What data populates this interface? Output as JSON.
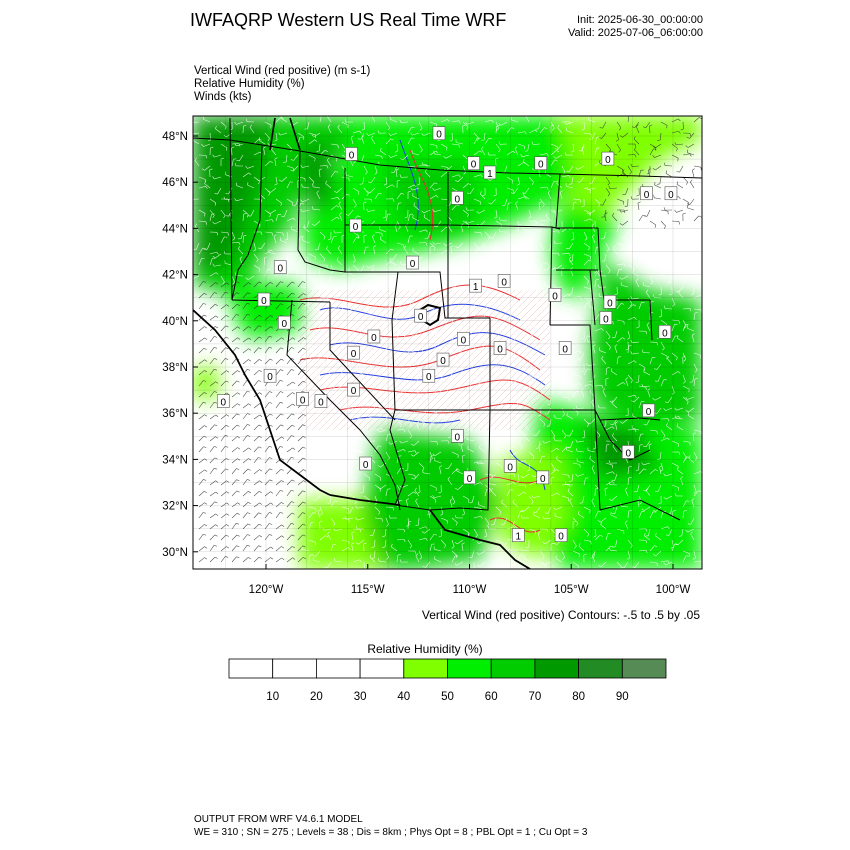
{
  "header": {
    "title": "IWFAQRP Western US Real Time WRF",
    "init": "Init: 2025-06-30_00:00:00",
    "valid": "Valid: 2025-07-06_06:00:00"
  },
  "fields": [
    "Vertical Wind (red positive)   (m s-1)",
    "Relative Humidity   (%)",
    "Winds   (kts)"
  ],
  "map": {
    "lat_labels": [
      "48°N",
      "46°N",
      "44°N",
      "42°N",
      "40°N",
      "38°N",
      "36°N",
      "34°N",
      "32°N",
      "30°N"
    ],
    "lon_labels": [
      "120°W",
      "115°W",
      "110°W",
      "105°W",
      "100°W"
    ],
    "lat_values": [
      48,
      46,
      44,
      42,
      40,
      38,
      36,
      34,
      32,
      30
    ],
    "lon_values": [
      -120,
      -115,
      -110,
      -105,
      -100
    ],
    "contour_labels": [
      {
        "text": "0",
        "lon": -111.5,
        "lat": 48.1
      },
      {
        "text": "0",
        "lon": -115.8,
        "lat": 47.2
      },
      {
        "text": "0",
        "lon": -109.8,
        "lat": 46.8
      },
      {
        "text": "0",
        "lon": -106.5,
        "lat": 46.8
      },
      {
        "text": "0",
        "lon": -103.2,
        "lat": 47.0
      },
      {
        "text": "1",
        "lon": -109.0,
        "lat": 46.4
      },
      {
        "text": "0",
        "lon": -110.6,
        "lat": 45.3
      },
      {
        "text": "0",
        "lon": -115.6,
        "lat": 44.1
      },
      {
        "text": "0",
        "lon": -101.3,
        "lat": 45.5
      },
      {
        "text": "0",
        "lon": -100.1,
        "lat": 45.5
      },
      {
        "text": "0",
        "lon": -112.8,
        "lat": 42.5
      },
      {
        "text": "0",
        "lon": -119.3,
        "lat": 42.3
      },
      {
        "text": "1",
        "lon": -109.7,
        "lat": 41.5
      },
      {
        "text": "0",
        "lon": -108.3,
        "lat": 41.7
      },
      {
        "text": "0",
        "lon": -105.8,
        "lat": 41.1
      },
      {
        "text": "0",
        "lon": -103.1,
        "lat": 40.8
      },
      {
        "text": "0",
        "lon": -120.1,
        "lat": 40.9
      },
      {
        "text": "0",
        "lon": -112.4,
        "lat": 40.2
      },
      {
        "text": "0",
        "lon": -119.1,
        "lat": 39.9
      },
      {
        "text": "0",
        "lon": -103.3,
        "lat": 40.1
      },
      {
        "text": "0",
        "lon": -100.4,
        "lat": 39.5
      },
      {
        "text": "0",
        "lon": -114.7,
        "lat": 39.3
      },
      {
        "text": "0",
        "lon": -110.3,
        "lat": 39.2
      },
      {
        "text": "0",
        "lon": -108.5,
        "lat": 38.8
      },
      {
        "text": "0",
        "lon": -105.3,
        "lat": 38.8
      },
      {
        "text": "0",
        "lon": -115.7,
        "lat": 38.6
      },
      {
        "text": "0",
        "lon": -119.8,
        "lat": 37.6
      },
      {
        "text": "0",
        "lon": -111.3,
        "lat": 38.3
      },
      {
        "text": "0",
        "lon": -112.0,
        "lat": 37.6
      },
      {
        "text": "0",
        "lon": -115.7,
        "lat": 37.0
      },
      {
        "text": "0",
        "lon": -122.1,
        "lat": 36.5
      },
      {
        "text": "0",
        "lon": -118.2,
        "lat": 36.6
      },
      {
        "text": "0",
        "lon": -117.3,
        "lat": 36.5
      },
      {
        "text": "0",
        "lon": -101.2,
        "lat": 36.1
      },
      {
        "text": "0",
        "lon": -110.6,
        "lat": 35.0
      },
      {
        "text": "0",
        "lon": -102.2,
        "lat": 34.3
      },
      {
        "text": "0",
        "lon": -115.1,
        "lat": 33.8
      },
      {
        "text": "0",
        "lon": -108.0,
        "lat": 33.7
      },
      {
        "text": "0",
        "lon": -110.0,
        "lat": 33.2
      },
      {
        "text": "0",
        "lon": -106.4,
        "lat": 33.2
      },
      {
        "text": "1",
        "lon": -107.6,
        "lat": 30.7
      },
      {
        "text": "0",
        "lon": -105.5,
        "lat": 30.7
      }
    ]
  },
  "contour_note": "Vertical Wind (red positive) Contours: -.5 to .5 by .05",
  "colorbar": {
    "title": "Relative Humidity   (%)",
    "ticks": [
      "10",
      "20",
      "30",
      "40",
      "50",
      "60",
      "70",
      "80",
      "90"
    ],
    "colors": [
      "#ffffff",
      "#ffffff",
      "#ffffff",
      "#ffffff",
      "#7fff00",
      "#00ee00",
      "#00cc00",
      "#009900",
      "#238b23",
      "#568b56"
    ]
  },
  "footer": {
    "line1": "OUTPUT FROM WRF V4.6.1 MODEL",
    "line2": "WE = 310 ; SN = 275 ; Levels = 38 ; Dis = 8km ; Phys Opt = 8 ; PBL Opt = 1 ; Cu Opt = 3"
  }
}
